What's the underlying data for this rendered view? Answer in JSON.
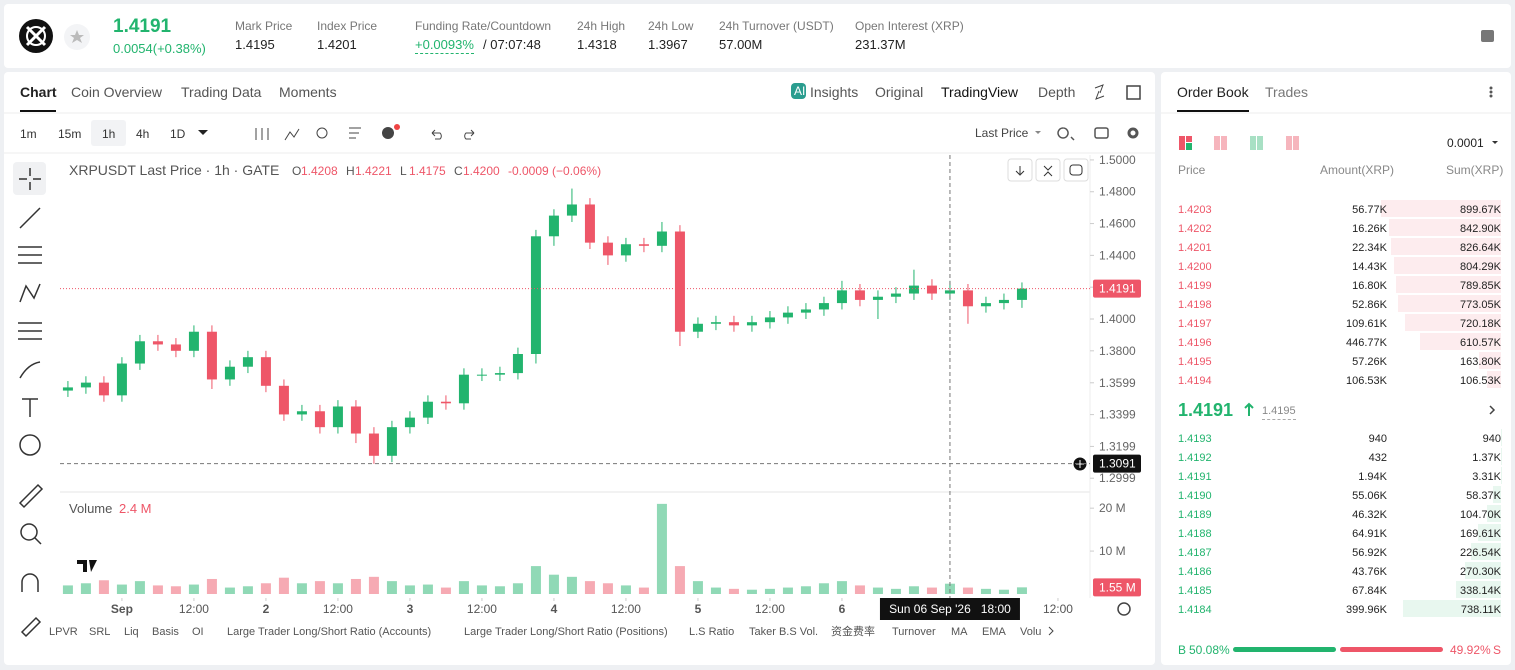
{
  "header": {
    "price": "1.4191",
    "change": "0.0054(+0.38%)",
    "stats": [
      {
        "label": "Mark Price",
        "value": "1.4195"
      },
      {
        "label": "Index Price",
        "value": "1.4201"
      },
      {
        "label": "Funding Rate/Countdown",
        "value": "+0.0093%",
        "extra": "/ 07:07:48"
      },
      {
        "label": "24h High",
        "value": "1.4318"
      },
      {
        "label": "24h Low",
        "value": "1.3967"
      },
      {
        "label": "24h Turnover (USDT)",
        "value": "57.00M"
      },
      {
        "label": "Open Interest (XRP)",
        "value": "231.37M"
      }
    ]
  },
  "chart_tabs": [
    "Chart",
    "Coin Overview",
    "Trading Data",
    "Moments"
  ],
  "view_tabs": [
    "Insights",
    "Original",
    "TradingView",
    "Depth"
  ],
  "intervals": [
    "1m",
    "15m",
    "1h",
    "4h",
    "1D"
  ],
  "price_source": "Last Price",
  "indicators": [
    "LPVR",
    "SRL",
    "Liq",
    "Basis",
    "OI",
    "Large Trader Long/Short Ratio (Accounts)",
    "Large Trader Long/Short Ratio (Positions)",
    "L.S Ratio",
    "Taker B.S Vol.",
    "资金费率",
    "Turnover",
    "MA",
    "EMA",
    "Volu"
  ],
  "chart_data": {
    "type": "candlestick",
    "title": "XRPUSDT Last Price · 1h · GATE",
    "legend": [
      {
        "key": "O",
        "value": "1.4208"
      },
      {
        "key": "H",
        "value": "1.4221"
      },
      {
        "key": "L",
        "value": "1.4175"
      },
      {
        "key": "C",
        "value": "1.4200"
      }
    ],
    "change": "-0.0009 (−0.06%)",
    "up_color": "#22b46e",
    "down_color": "#ee5668",
    "open": [
      1.355,
      1.357,
      1.36,
      1.352,
      1.372,
      1.386,
      1.384,
      1.38,
      1.392,
      1.362,
      1.37,
      1.376,
      1.358,
      1.34,
      1.342,
      1.332,
      1.345,
      1.328,
      1.314,
      1.332,
      1.338,
      1.348,
      1.347,
      1.365,
      1.365,
      1.366,
      1.378,
      1.452,
      1.465,
      1.472,
      1.448,
      1.44,
      1.447,
      1.446,
      1.455,
      1.392,
      1.397,
      1.398,
      1.396,
      1.398,
      1.401,
      1.404,
      1.406,
      1.41,
      1.418,
      1.412,
      1.414,
      1.416,
      1.421,
      1.416,
      1.418,
      1.408,
      1.41,
      1.412
    ],
    "high": [
      1.361,
      1.364,
      1.364,
      1.376,
      1.39,
      1.39,
      1.388,
      1.396,
      1.396,
      1.374,
      1.38,
      1.38,
      1.362,
      1.346,
      1.346,
      1.349,
      1.349,
      1.332,
      1.336,
      1.342,
      1.352,
      1.352,
      1.369,
      1.369,
      1.37,
      1.382,
      1.456,
      1.469,
      1.482,
      1.476,
      1.452,
      1.451,
      1.451,
      1.461,
      1.459,
      1.401,
      1.402,
      1.402,
      1.402,
      1.405,
      1.408,
      1.41,
      1.414,
      1.424,
      1.422,
      1.418,
      1.42,
      1.431,
      1.425,
      1.424,
      1.422,
      1.414,
      1.416,
      1.423
    ],
    "low": [
      1.351,
      1.353,
      1.348,
      1.348,
      1.368,
      1.38,
      1.376,
      1.376,
      1.356,
      1.358,
      1.366,
      1.354,
      1.336,
      1.336,
      1.328,
      1.328,
      1.322,
      1.309,
      1.31,
      1.328,
      1.334,
      1.343,
      1.343,
      1.361,
      1.361,
      1.362,
      1.372,
      1.446,
      1.461,
      1.444,
      1.434,
      1.436,
      1.442,
      1.442,
      1.383,
      1.388,
      1.393,
      1.392,
      1.392,
      1.394,
      1.397,
      1.4,
      1.402,
      1.406,
      1.408,
      1.4,
      1.41,
      1.412,
      1.412,
      1.412,
      1.397,
      1.404,
      1.406,
      1.407
    ],
    "close": [
      1.357,
      1.36,
      1.352,
      1.372,
      1.386,
      1.384,
      1.38,
      1.392,
      1.362,
      1.37,
      1.376,
      1.358,
      1.34,
      1.342,
      1.332,
      1.345,
      1.328,
      1.314,
      1.332,
      1.338,
      1.348,
      1.347,
      1.365,
      1.365,
      1.366,
      1.378,
      1.452,
      1.465,
      1.472,
      1.448,
      1.44,
      1.447,
      1.446,
      1.455,
      1.392,
      1.397,
      1.398,
      1.396,
      1.398,
      1.401,
      1.404,
      1.406,
      1.41,
      1.418,
      1.412,
      1.414,
      1.416,
      1.421,
      1.416,
      1.418,
      1.408,
      1.41,
      1.412,
      1.4191
    ],
    "volume": [
      2.0,
      2.5,
      3.2,
      2.2,
      3.0,
      2.0,
      1.8,
      2.2,
      3.5,
      1.5,
      1.8,
      2.5,
      3.8,
      2.5,
      3.0,
      2.5,
      3.5,
      4.0,
      3.0,
      2.0,
      2.2,
      1.5,
      3.0,
      2.0,
      1.8,
      2.5,
      6.5,
      4.5,
      4.0,
      3.0,
      2.5,
      2.0,
      1.5,
      21.0,
      6.5,
      3.0,
      1.5,
      1.2,
      1.0,
      1.2,
      1.5,
      1.8,
      2.5,
      3.0,
      2.0,
      1.5,
      1.2,
      1.8,
      1.5,
      2.4,
      1.5,
      1.2,
      1.0,
      1.55
    ],
    "xlim": [
      -0.44,
      56.78
    ],
    "xticks": [
      {
        "value": 3,
        "label": "Sep"
      },
      {
        "value": 7,
        "label": "12:00"
      },
      {
        "value": 11,
        "label": "2"
      },
      {
        "value": 15,
        "label": "12:00"
      },
      {
        "value": 19,
        "label": "3"
      },
      {
        "value": 23,
        "label": "12:00"
      },
      {
        "value": 27,
        "label": "4"
      },
      {
        "value": 31,
        "label": "12:00"
      },
      {
        "value": 35,
        "label": "5"
      },
      {
        "value": 39,
        "label": "12:00"
      },
      {
        "value": 43,
        "label": "6"
      },
      {
        "value": 55,
        "label": "12:00"
      }
    ],
    "ylim": [
      1.2925,
      1.5031
    ],
    "yticks": [
      {
        "value": 1.5,
        "label": "1.5000"
      },
      {
        "value": 1.48,
        "label": "1.4800"
      },
      {
        "value": 1.46,
        "label": "1.4600"
      },
      {
        "value": 1.44,
        "label": "1.4400"
      },
      {
        "value": 1.42,
        "label": "1.4200"
      },
      {
        "value": 1.4,
        "label": "1.4000"
      },
      {
        "value": 1.38,
        "label": "1.3800"
      },
      1.3599,
      1.3399,
      1.3199,
      1.2999
    ],
    "last_price": 1.4191,
    "crosshair": {
      "x": 49,
      "x_label": "Sun 06 Sep '26   18:00",
      "y": 1.3091
    },
    "volume_title": "Volume",
    "volume_legend": "2.4 M",
    "last_volume_label": "1.55 M",
    "volume_ylim": [
      0,
      23.3
    ],
    "volume_yticks": [
      {
        "value": 20,
        "label": "20 M"
      },
      {
        "value": 10,
        "label": "10 M"
      }
    ]
  },
  "order_book": {
    "tabs": [
      "Order Book",
      "Trades"
    ],
    "precision": "0.0001",
    "columns": [
      "Price",
      "Amount(XRP)",
      "Sum(XRP)"
    ],
    "asks": [
      [
        "1.4203",
        "56.77K",
        "899.67K"
      ],
      [
        "1.4202",
        "16.26K",
        "842.90K"
      ],
      [
        "1.4201",
        "22.34K",
        "826.64K"
      ],
      [
        "1.4200",
        "14.43K",
        "804.29K"
      ],
      [
        "1.4199",
        "16.80K",
        "789.85K"
      ],
      [
        "1.4198",
        "52.86K",
        "773.05K"
      ],
      [
        "1.4197",
        "109.61K",
        "720.18K"
      ],
      [
        "1.4196",
        "446.77K",
        "610.57K"
      ],
      [
        "1.4195",
        "57.26K",
        "163.80K"
      ],
      [
        "1.4194",
        "106.53K",
        "106.53K"
      ]
    ],
    "mid_price": "1.4191",
    "mark_price": "1.4195",
    "bids": [
      [
        "1.4193",
        "940",
        "940"
      ],
      [
        "1.4192",
        "432",
        "1.37K"
      ],
      [
        "1.4191",
        "1.94K",
        "3.31K"
      ],
      [
        "1.4190",
        "55.06K",
        "58.37K"
      ],
      [
        "1.4189",
        "46.32K",
        "104.70K"
      ],
      [
        "1.4188",
        "64.91K",
        "169.61K"
      ],
      [
        "1.4187",
        "56.92K",
        "226.54K"
      ],
      [
        "1.4186",
        "43.76K",
        "270.30K"
      ],
      [
        "1.4185",
        "67.84K",
        "338.14K"
      ],
      [
        "1.4184",
        "399.96K",
        "738.11K"
      ]
    ],
    "buy_side": "B",
    "sell_side": "S",
    "buy_ratio": {
      "value": 50.08,
      "label": "50.08%"
    },
    "sell_ratio": {
      "value": 49.92,
      "label": "49.92%"
    }
  }
}
